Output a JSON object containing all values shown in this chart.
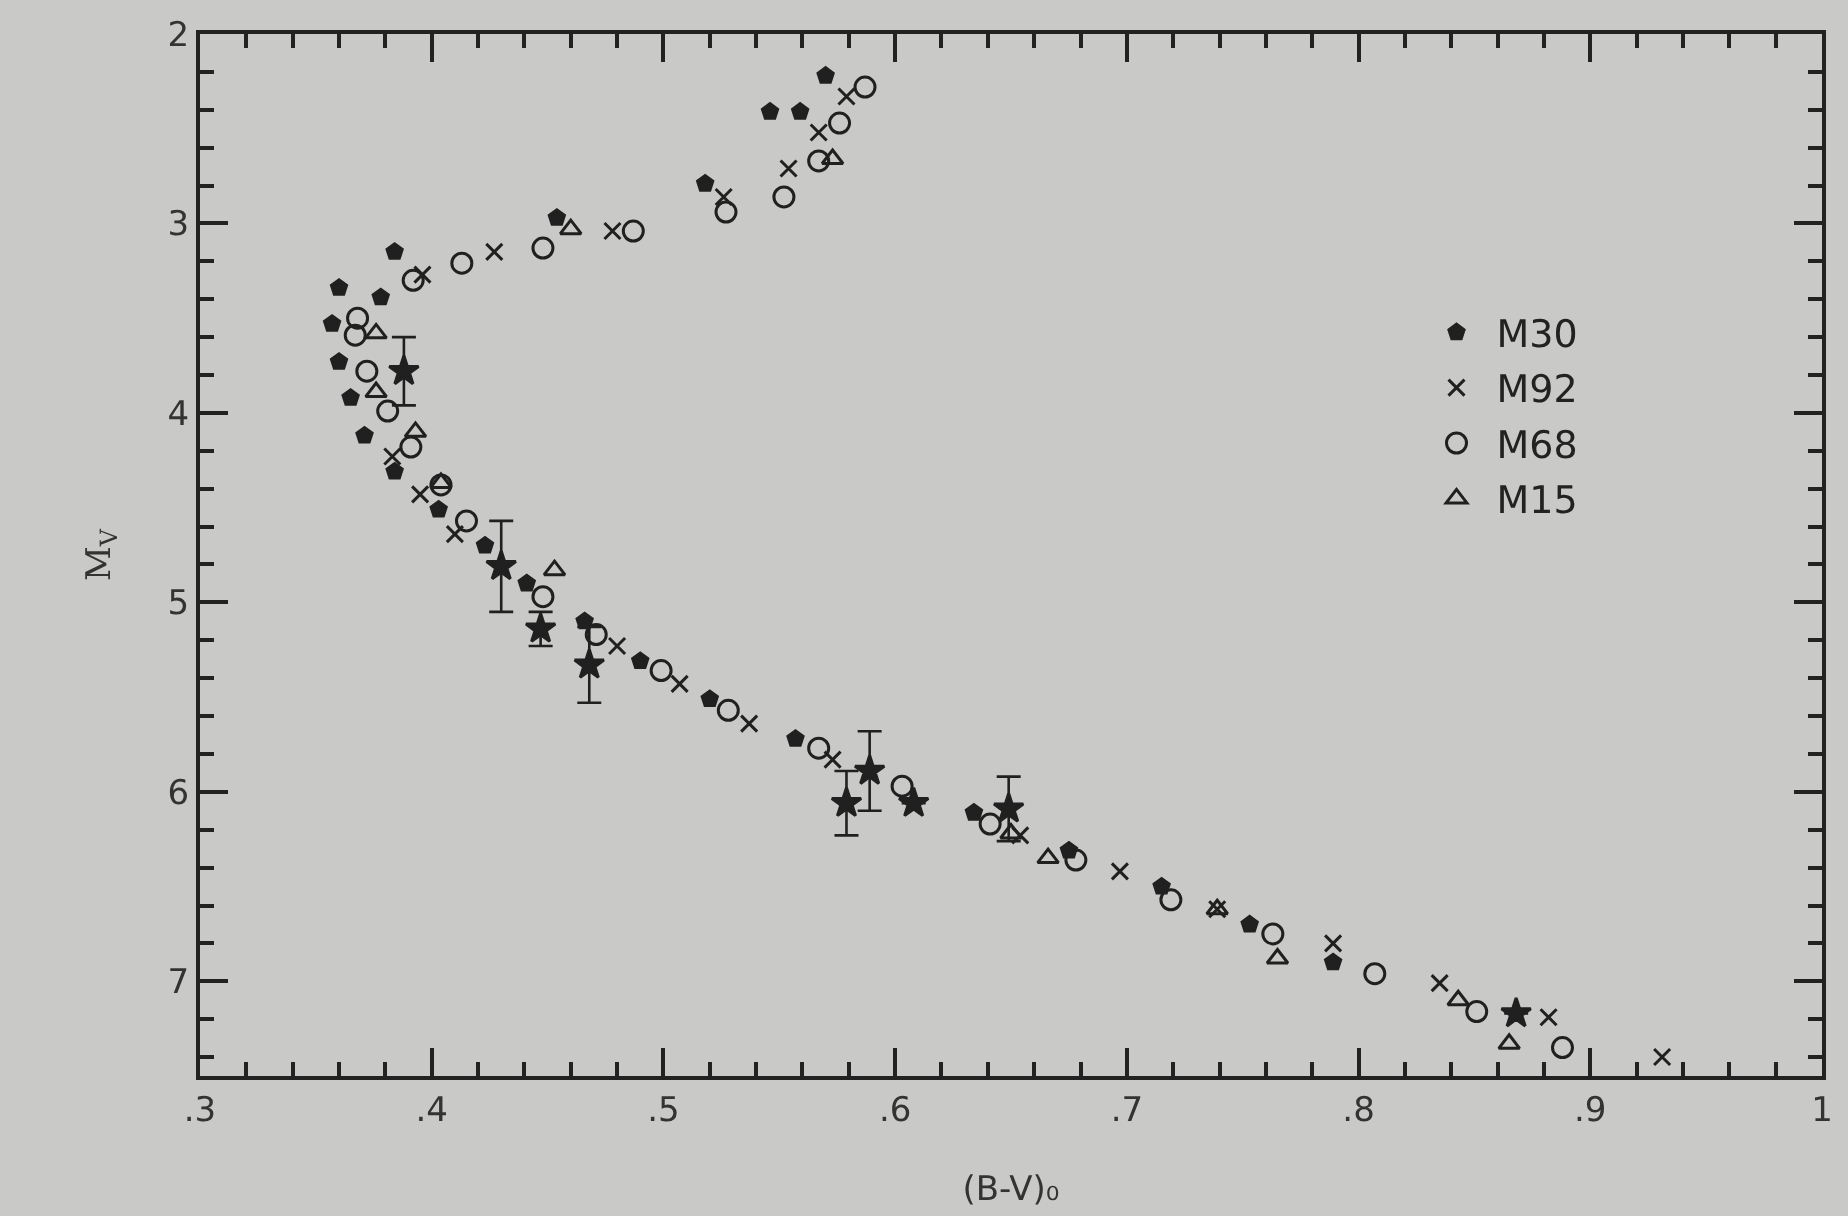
{
  "chart_data": {
    "type": "scatter",
    "xlabel": "(B-V)₀",
    "ylabel": "M$_{V}$",
    "xlim": [
      0.3,
      1.0
    ],
    "xticks": [
      {
        "value": 0.3,
        "label": ".3"
      },
      {
        "value": 0.4,
        "label": ".4"
      },
      {
        "value": 0.5,
        "label": ".5"
      },
      {
        "value": 0.6,
        "label": ".6"
      },
      {
        "value": 0.7,
        "label": ".7"
      },
      {
        "value": 0.8,
        "label": ".8"
      },
      {
        "value": 0.9,
        "label": ".9"
      },
      1
    ],
    "ylim": [
      7.5,
      2
    ],
    "yticks": [
      2,
      3,
      4,
      5,
      6,
      7
    ],
    "grid": false,
    "legend": "right",
    "series": [
      {
        "name": "M30",
        "color": "#202020",
        "x": [
          0.57,
          0.546,
          0.559,
          0.518,
          0.454,
          0.384,
          0.36,
          0.378,
          0.357,
          0.36,
          0.365,
          0.371,
          0.384,
          0.403,
          0.423,
          0.441,
          0.466,
          0.49,
          0.52,
          0.557,
          0.605,
          0.634,
          0.675,
          0.715,
          0.753,
          0.789
        ],
        "values": [
          2.22,
          2.41,
          2.41,
          2.79,
          2.97,
          3.15,
          3.34,
          3.39,
          3.53,
          3.73,
          3.92,
          4.12,
          4.31,
          4.51,
          4.7,
          4.9,
          5.1,
          5.31,
          5.51,
          5.72,
          null,
          6.11,
          6.31,
          6.5,
          6.7,
          6.9
        ]
      },
      {
        "name": "M92",
        "color": "#202020",
        "marker": "cross",
        "x": [
          0.579,
          0.567,
          0.554,
          0.526,
          0.478,
          0.427,
          0.396,
          0.383,
          0.395,
          0.41,
          0.48,
          0.507,
          0.537,
          0.573,
          0.654,
          0.697,
          0.739,
          0.789,
          0.835,
          0.882,
          0.931
        ],
        "values": [
          2.33,
          2.52,
          2.71,
          2.86,
          3.04,
          3.15,
          3.27,
          4.23,
          4.43,
          4.64,
          5.23,
          5.43,
          5.64,
          5.83,
          6.23,
          6.42,
          6.62,
          6.8,
          7.01,
          7.19,
          7.4
        ]
      },
      {
        "name": "M68",
        "color": "#202020",
        "marker": "circle",
        "x": [
          0.587,
          0.576,
          0.567,
          0.552,
          0.527,
          0.487,
          0.448,
          0.413,
          0.392,
          0.368,
          0.367,
          0.372,
          0.381,
          0.391,
          0.404,
          0.415,
          0.448,
          0.471,
          0.499,
          0.528,
          0.567,
          0.603,
          0.641,
          0.678,
          0.719,
          0.763,
          0.807,
          0.851,
          0.888
        ],
        "values": [
          2.28,
          2.47,
          2.67,
          2.86,
          2.94,
          3.04,
          3.13,
          3.21,
          3.3,
          3.5,
          3.59,
          3.78,
          3.99,
          4.18,
          4.38,
          4.57,
          4.97,
          5.17,
          5.36,
          5.57,
          5.77,
          5.97,
          6.17,
          6.36,
          6.57,
          6.75,
          6.96,
          7.16,
          7.35
        ]
      },
      {
        "name": "M15",
        "color": "#202020",
        "marker": "triangle",
        "x": [
          0.573,
          0.46,
          0.376,
          0.376,
          0.393,
          0.404,
          0.453,
          0.466,
          0.65,
          0.666,
          0.739,
          0.765,
          0.843,
          0.865
        ],
        "values": [
          2.66,
          3.03,
          3.58,
          3.89,
          4.1,
          4.37,
          4.83,
          null,
          6.22,
          6.35,
          6.62,
          6.88,
          7.1,
          7.33
        ]
      },
      {
        "color": "#202020",
        "marker": "star",
        "x": [
          0.388,
          0.43,
          0.447,
          0.468,
          0.579,
          0.589,
          0.608,
          0.649,
          0.868
        ],
        "values": [
          3.78,
          4.81,
          5.14,
          5.33,
          6.06,
          5.89,
          6.06,
          6.09,
          7.17
        ],
        "errors": [
          0.18,
          0.24,
          0.09,
          0.2,
          0.17,
          0.21,
          null,
          0.17,
          null
        ]
      }
    ]
  }
}
